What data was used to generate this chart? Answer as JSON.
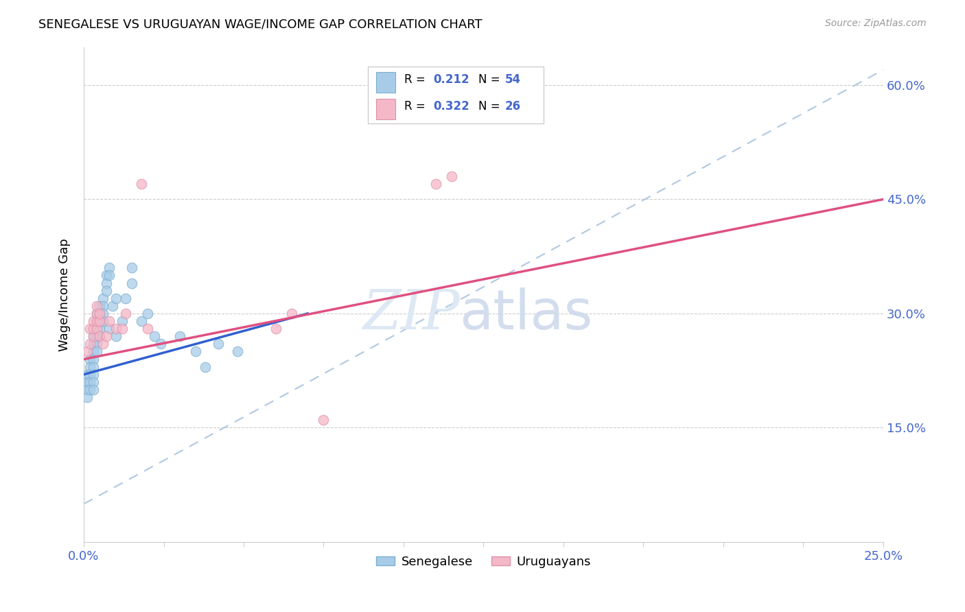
{
  "title": "SENEGALESE VS URUGUAYAN WAGE/INCOME GAP CORRELATION CHART",
  "source": "Source: ZipAtlas.com",
  "ylabel_label": "Wage/Income Gap",
  "ylabel_ticks": [
    0.15,
    0.3,
    0.45,
    0.6
  ],
  "ylabel_tick_labels": [
    "15.0%",
    "30.0%",
    "45.0%",
    "60.0%"
  ],
  "xlim": [
    0.0,
    0.25
  ],
  "ylim": [
    0.0,
    0.65
  ],
  "blue_color": "#a8cce8",
  "blue_edge": "#7aaed0",
  "pink_color": "#f4b8c8",
  "pink_edge": "#e090a8",
  "blue_line_color": "#3060d0",
  "pink_line_color": "#e05080",
  "dash_line_color": "#b0c8e0",
  "senegalese_x": [
    0.001,
    0.001,
    0.001,
    0.001,
    0.002,
    0.002,
    0.002,
    0.002,
    0.002,
    0.003,
    0.003,
    0.003,
    0.003,
    0.003,
    0.003,
    0.003,
    0.003,
    0.004,
    0.004,
    0.004,
    0.004,
    0.004,
    0.004,
    0.005,
    0.005,
    0.005,
    0.005,
    0.005,
    0.006,
    0.006,
    0.006,
    0.006,
    0.007,
    0.007,
    0.007,
    0.008,
    0.008,
    0.008,
    0.009,
    0.01,
    0.01,
    0.012,
    0.013,
    0.015,
    0.015,
    0.018,
    0.02,
    0.022,
    0.024,
    0.03,
    0.035,
    0.038,
    0.042,
    0.048
  ],
  "senegalese_y": [
    0.22,
    0.21,
    0.2,
    0.19,
    0.24,
    0.23,
    0.22,
    0.21,
    0.2,
    0.27,
    0.26,
    0.25,
    0.24,
    0.23,
    0.22,
    0.21,
    0.2,
    0.3,
    0.29,
    0.28,
    0.27,
    0.26,
    0.25,
    0.31,
    0.3,
    0.29,
    0.28,
    0.27,
    0.32,
    0.31,
    0.3,
    0.29,
    0.35,
    0.34,
    0.33,
    0.36,
    0.35,
    0.28,
    0.31,
    0.32,
    0.27,
    0.29,
    0.32,
    0.34,
    0.36,
    0.29,
    0.3,
    0.27,
    0.26,
    0.27,
    0.25,
    0.23,
    0.26,
    0.25
  ],
  "uruguayan_x": [
    0.001,
    0.002,
    0.002,
    0.003,
    0.003,
    0.003,
    0.004,
    0.004,
    0.004,
    0.004,
    0.005,
    0.005,
    0.005,
    0.006,
    0.007,
    0.008,
    0.01,
    0.012,
    0.013,
    0.018,
    0.02,
    0.06,
    0.065,
    0.075,
    0.11,
    0.115
  ],
  "uruguayan_y": [
    0.25,
    0.26,
    0.28,
    0.27,
    0.28,
    0.29,
    0.28,
    0.29,
    0.3,
    0.31,
    0.27,
    0.29,
    0.3,
    0.26,
    0.27,
    0.29,
    0.28,
    0.28,
    0.3,
    0.47,
    0.28,
    0.28,
    0.3,
    0.16,
    0.47,
    0.48
  ],
  "senegalese_line_x": [
    0.0,
    0.07
  ],
  "senegalese_line_y": [
    0.22,
    0.3
  ],
  "uruguayan_line_x": [
    0.0,
    0.25
  ],
  "uruguayan_line_y": [
    0.24,
    0.45
  ],
  "dash_line_x": [
    0.0,
    0.25
  ],
  "dash_line_y": [
    0.05,
    0.62
  ]
}
